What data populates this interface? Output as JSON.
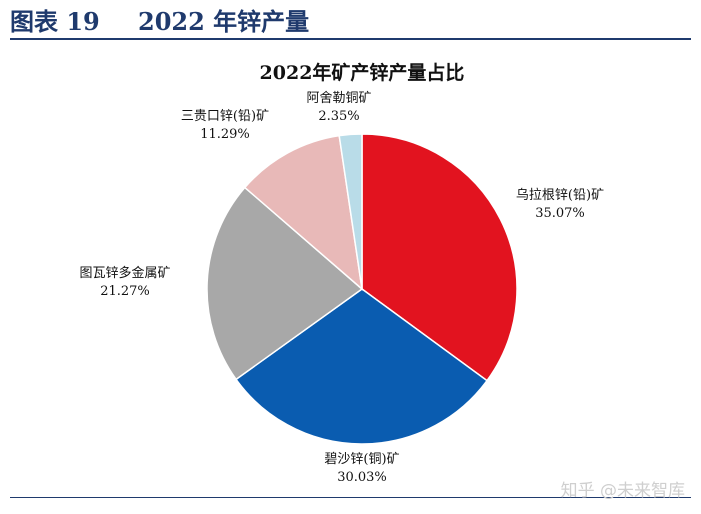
{
  "figure": {
    "label": "图表 19",
    "title": "2022 年锌产量"
  },
  "chart_data": {
    "type": "pie",
    "title": "2022年矿产锌产量占比",
    "start_angle_deg": 0,
    "direction": "clockwise",
    "slices": [
      {
        "name": "乌拉根锌(铅)矿",
        "value": 35.07,
        "label": "35.07%",
        "color": "#e2131f"
      },
      {
        "name": "碧沙锌(铜)矿",
        "value": 30.03,
        "label": "30.03%",
        "color": "#0a5cb0"
      },
      {
        "name": "图瓦锌多金属矿",
        "value": 21.27,
        "label": "21.27%",
        "color": "#a8a8a8"
      },
      {
        "name": "三贵口锌(铅)矿",
        "value": 11.29,
        "label": "11.29%",
        "color": "#e8b9b8"
      },
      {
        "name": "阿舍勒铜矿",
        "value": 2.35,
        "label": "2.35%",
        "color": "#b9dce8"
      }
    ]
  },
  "watermark": "知乎 @未来智库"
}
